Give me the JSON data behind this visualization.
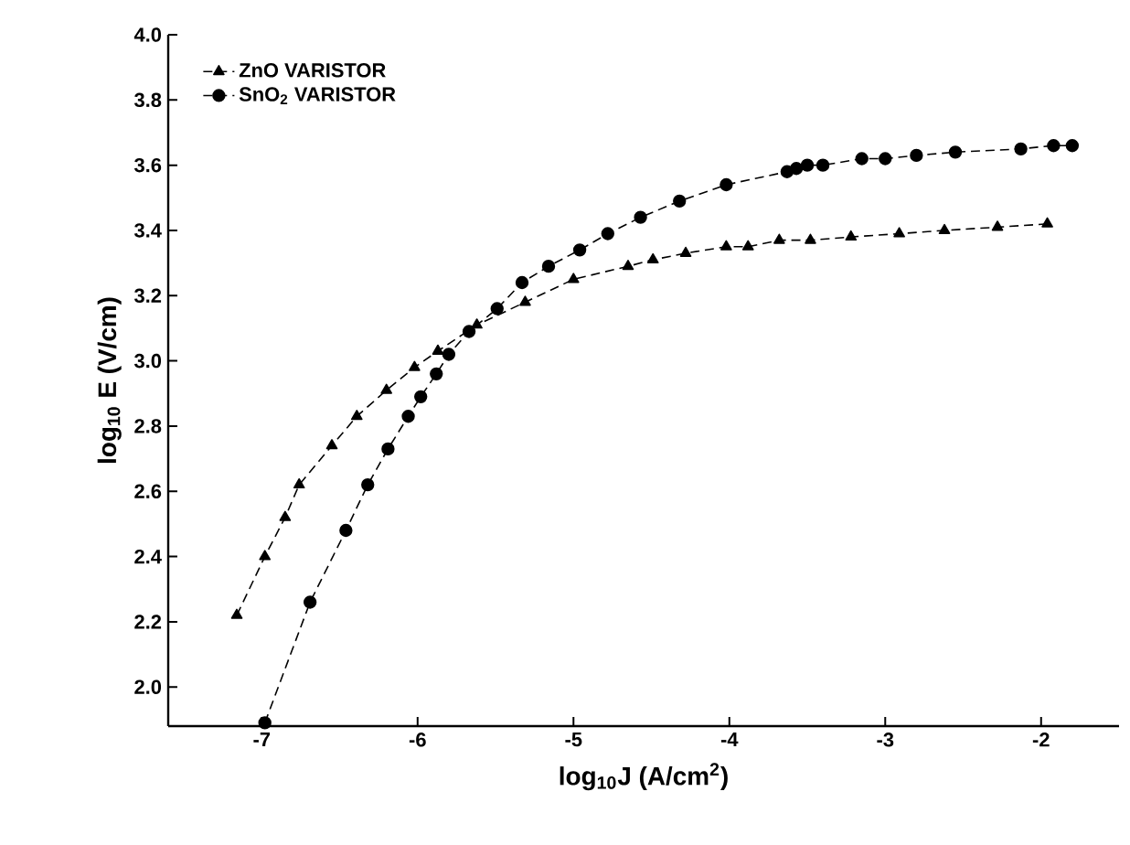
{
  "chart_data": {
    "type": "line",
    "xlabel": "log$_{10}$J (A/cm$^{2}$)",
    "ylabel": "log$_{10}$ E (V/cm)",
    "xlim": [
      -7.6,
      -1.5
    ],
    "ylim": [
      1.88,
      4.0
    ],
    "xticks": [
      -7,
      -6,
      -5,
      -4,
      -3,
      -2
    ],
    "yticks": [
      {
        "value": 2.0,
        "label": "2.0"
      },
      {
        "value": 2.2,
        "label": "2.2"
      },
      {
        "value": 2.4,
        "label": "2.4"
      },
      {
        "value": 2.6,
        "label": "2.6"
      },
      {
        "value": 2.8,
        "label": "2.8"
      },
      {
        "value": 3.0,
        "label": "3.0"
      },
      {
        "value": 3.2,
        "label": "3.2"
      },
      {
        "value": 3.4,
        "label": "3.4"
      },
      {
        "value": 3.6,
        "label": "3.6"
      },
      {
        "value": 3.8,
        "label": "3.8"
      },
      {
        "value": 4.0,
        "label": "4.0"
      }
    ],
    "legend": "top left",
    "line_style": "dashed",
    "grid": false,
    "series": [
      {
        "name": "ZnO   VARISTOR",
        "color": "#000000",
        "marker": "triangle",
        "x": [
          -7.16,
          -6.98,
          -6.85,
          -6.76,
          -6.55,
          -6.39,
          -6.2,
          -6.02,
          -5.87,
          -5.62,
          -5.31,
          -5.0,
          -4.65,
          -4.49,
          -4.28,
          -4.02,
          -3.88,
          -3.68,
          -3.48,
          -3.22,
          -2.91,
          -2.62,
          -2.28,
          -1.96
        ],
        "values": [
          2.22,
          2.4,
          2.52,
          2.62,
          2.74,
          2.83,
          2.91,
          2.98,
          3.03,
          3.11,
          3.18,
          3.25,
          3.29,
          3.31,
          3.33,
          3.35,
          3.35,
          3.37,
          3.37,
          3.38,
          3.39,
          3.4,
          3.41,
          3.42
        ]
      },
      {
        "name": "SnO$_{2}$ VARISTOR",
        "color": "#000000",
        "marker": "circle",
        "x": [
          -6.98,
          -6.69,
          -6.46,
          -6.32,
          -6.19,
          -6.06,
          -5.98,
          -5.88,
          -5.8,
          -5.67,
          -5.49,
          -5.33,
          -5.16,
          -4.96,
          -4.78,
          -4.57,
          -4.32,
          -4.02,
          -3.63,
          -3.57,
          -3.5,
          -3.4,
          -3.15,
          -3.0,
          -2.8,
          -2.55,
          -2.13,
          -1.92,
          -1.8
        ],
        "values": [
          1.89,
          2.26,
          2.48,
          2.62,
          2.73,
          2.83,
          2.89,
          2.96,
          3.02,
          3.09,
          3.16,
          3.24,
          3.29,
          3.34,
          3.39,
          3.44,
          3.49,
          3.54,
          3.58,
          3.59,
          3.6,
          3.6,
          3.62,
          3.62,
          3.63,
          3.64,
          3.65,
          3.66,
          3.66
        ]
      }
    ]
  }
}
